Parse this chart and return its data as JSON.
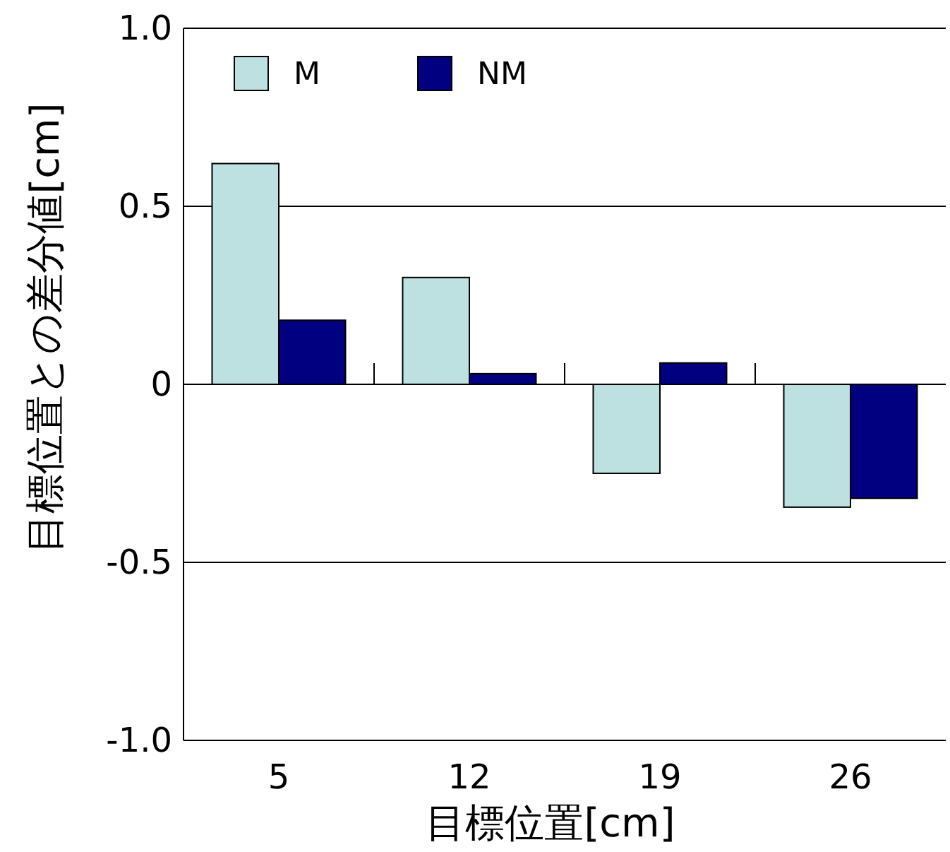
{
  "chart_data": {
    "type": "bar",
    "xlabel": "目標位置[cm]",
    "ylabel": "目標位置との差分値[cm]",
    "categories": [
      "5",
      "12",
      "19",
      "26"
    ],
    "series": [
      {
        "name": "M",
        "color": "#bde0e0",
        "values": [
          0.62,
          0.3,
          -0.25,
          -0.345
        ]
      },
      {
        "name": "NM",
        "color": "#000080",
        "values": [
          0.18,
          0.03,
          0.06,
          -0.32
        ]
      }
    ],
    "ylim": [
      -1,
      1
    ],
    "yticks": [
      {
        "value": 1,
        "label": "1.0"
      },
      {
        "value": 0.5,
        "label": "0.5"
      },
      0,
      {
        "value": -0.5,
        "label": "-0.5"
      },
      {
        "value": -1,
        "label": "-1.0"
      }
    ],
    "grid": "y",
    "legend": "top left"
  }
}
